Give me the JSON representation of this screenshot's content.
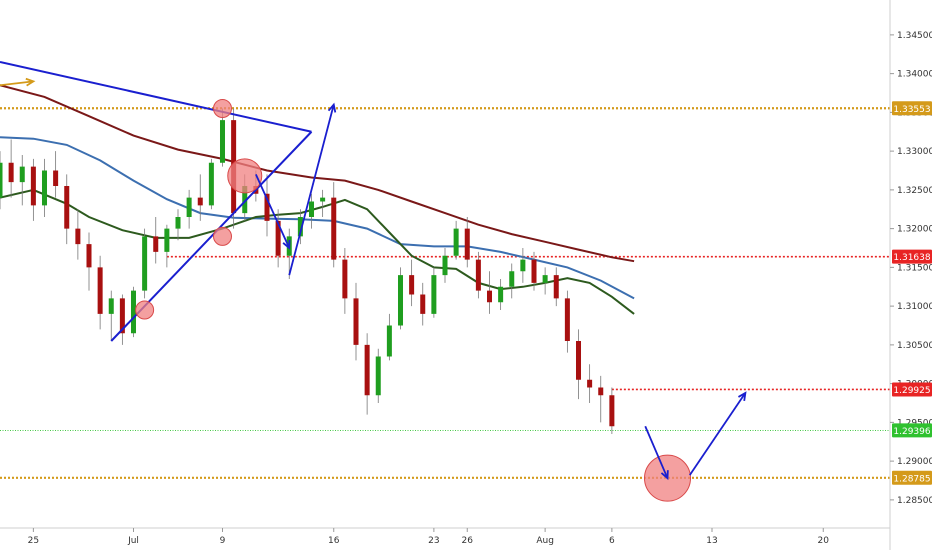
{
  "chart_data": {
    "type": "candlestick",
    "instrument": "",
    "x_tick_labels": [
      {
        "label": "25",
        "day": 0
      },
      {
        "label": "Jul",
        "day": 9
      },
      {
        "label": "9",
        "day": 17
      },
      {
        "label": "16",
        "day": 27
      },
      {
        "label": "23",
        "day": 36
      },
      {
        "label": "26",
        "day": 39
      },
      {
        "label": "Aug",
        "day": 46
      },
      {
        "label": "6",
        "day": 52
      },
      {
        "label": "13",
        "day": 61
      },
      {
        "label": "20",
        "day": 71
      }
    ],
    "x_range": [
      -3,
      77
    ],
    "y_range": [
      1.2815,
      1.3495
    ],
    "y_ticks": [
      "1.34500",
      "1.34000",
      "1.33500",
      "1.33000",
      "1.32500",
      "1.32000",
      "1.31500",
      "1.31000",
      "1.30500",
      "1.30000",
      "1.29500",
      "1.29000",
      "1.28500"
    ],
    "colors": {
      "up": "#1f9e1f",
      "down": "#a81010",
      "ma_fast": "#2d5a1e",
      "ma_mid": "#3c6fb0",
      "ma_slow": "#7a1818",
      "orange_level": "#d49a1a",
      "red_level": "#e82424",
      "green_level": "#2fc12f",
      "annotation_blue": "#1a1fcf",
      "circle_fill": "#f08080"
    },
    "horizontal_levels": [
      {
        "value": 1.33553,
        "label": "1.33553",
        "color": "#d49a1a",
        "style": "dotted-thick",
        "from_day": -3
      },
      {
        "value": 1.31638,
        "label": "1.31638",
        "color": "#e82424",
        "style": "dotted",
        "from_day": 12
      },
      {
        "value": 1.29925,
        "label": "1.29925",
        "color": "#e82424",
        "style": "dotted",
        "from_day": 52
      },
      {
        "value": 1.29396,
        "label": "1.29396",
        "color": "#2fc12f",
        "style": "dotted-thin",
        "from_day": -3
      },
      {
        "value": 1.28785,
        "label": "1.28785",
        "color": "#d49a1a",
        "style": "dotted-thick",
        "from_day": -3
      }
    ],
    "moving_averages": [
      {
        "color": "#7a1818",
        "points": [
          [
            -3,
            1.3385
          ],
          [
            1,
            1.337
          ],
          [
            5,
            1.3345
          ],
          [
            9,
            1.332
          ],
          [
            13,
            1.3302
          ],
          [
            17,
            1.329
          ],
          [
            21,
            1.3275
          ],
          [
            25,
            1.3266
          ],
          [
            28,
            1.3262
          ],
          [
            31,
            1.325
          ],
          [
            34,
            1.3235
          ],
          [
            37,
            1.322
          ],
          [
            40,
            1.3205
          ],
          [
            43,
            1.3193
          ],
          [
            46,
            1.3183
          ],
          [
            49,
            1.3173
          ],
          [
            52,
            1.3163
          ],
          [
            54,
            1.3158
          ]
        ]
      },
      {
        "color": "#3c6fb0",
        "points": [
          [
            -3,
            1.3318
          ],
          [
            0,
            1.3316
          ],
          [
            3,
            1.3308
          ],
          [
            6,
            1.3288
          ],
          [
            9,
            1.3262
          ],
          [
            12,
            1.3238
          ],
          [
            15,
            1.322
          ],
          [
            18,
            1.3214
          ],
          [
            21,
            1.3213
          ],
          [
            24,
            1.3212
          ],
          [
            27,
            1.321
          ],
          [
            30,
            1.32
          ],
          [
            33,
            1.318
          ],
          [
            36,
            1.3177
          ],
          [
            39,
            1.3177
          ],
          [
            42,
            1.317
          ],
          [
            45,
            1.316
          ],
          [
            48,
            1.315
          ],
          [
            51,
            1.3133
          ],
          [
            54,
            1.311
          ]
        ]
      },
      {
        "color": "#2d5a1e",
        "points": [
          [
            -3,
            1.324
          ],
          [
            0,
            1.325
          ],
          [
            3,
            1.3232
          ],
          [
            5,
            1.3215
          ],
          [
            8,
            1.3198
          ],
          [
            11,
            1.3188
          ],
          [
            14,
            1.3188
          ],
          [
            17,
            1.32
          ],
          [
            20,
            1.3215
          ],
          [
            22,
            1.3218
          ],
          [
            24,
            1.322
          ],
          [
            26,
            1.3228
          ],
          [
            28,
            1.3237
          ],
          [
            30,
            1.3225
          ],
          [
            32,
            1.3195
          ],
          [
            34,
            1.3165
          ],
          [
            36,
            1.315
          ],
          [
            38,
            1.3148
          ],
          [
            40,
            1.313
          ],
          [
            42,
            1.3122
          ],
          [
            44,
            1.3125
          ],
          [
            46,
            1.313
          ],
          [
            48,
            1.3136
          ],
          [
            50,
            1.313
          ],
          [
            52,
            1.3112
          ],
          [
            54,
            1.309
          ]
        ]
      }
    ],
    "candles": [
      [
        -3,
        1.324,
        1.33,
        1.3225,
        1.3285
      ],
      [
        -2,
        1.3285,
        1.3315,
        1.324,
        1.326
      ],
      [
        -1,
        1.326,
        1.3295,
        1.323,
        1.328
      ],
      [
        0,
        1.328,
        1.329,
        1.321,
        1.323
      ],
      [
        1,
        1.323,
        1.329,
        1.3215,
        1.3275
      ],
      [
        2,
        1.3275,
        1.33,
        1.324,
        1.3255
      ],
      [
        3,
        1.3255,
        1.327,
        1.318,
        1.32
      ],
      [
        4,
        1.32,
        1.3225,
        1.316,
        1.318
      ],
      [
        5,
        1.318,
        1.3195,
        1.312,
        1.315
      ],
      [
        6,
        1.315,
        1.3165,
        1.307,
        1.309
      ],
      [
        7,
        1.309,
        1.312,
        1.3055,
        1.311
      ],
      [
        8,
        1.311,
        1.3115,
        1.305,
        1.3065
      ],
      [
        9,
        1.3065,
        1.3125,
        1.306,
        1.312
      ],
      [
        10,
        1.312,
        1.32,
        1.311,
        1.319
      ],
      [
        11,
        1.319,
        1.3215,
        1.3155,
        1.317
      ],
      [
        12,
        1.317,
        1.3205,
        1.315,
        1.32
      ],
      [
        13,
        1.32,
        1.3225,
        1.3185,
        1.3215
      ],
      [
        14,
        1.3215,
        1.325,
        1.32,
        1.324
      ],
      [
        15,
        1.324,
        1.327,
        1.321,
        1.323
      ],
      [
        16,
        1.323,
        1.329,
        1.3225,
        1.3285
      ],
      [
        17,
        1.3285,
        1.3355,
        1.328,
        1.334
      ],
      [
        18,
        1.334,
        1.3355,
        1.32,
        1.322
      ],
      [
        19,
        1.322,
        1.327,
        1.321,
        1.3255
      ],
      [
        20,
        1.3255,
        1.3275,
        1.3235,
        1.3245
      ],
      [
        21,
        1.3245,
        1.327,
        1.319,
        1.321
      ],
      [
        22,
        1.321,
        1.3225,
        1.315,
        1.3165
      ],
      [
        23,
        1.3165,
        1.32,
        1.3135,
        1.319
      ],
      [
        24,
        1.319,
        1.3225,
        1.318,
        1.3215
      ],
      [
        25,
        1.3215,
        1.3245,
        1.32,
        1.3235
      ],
      [
        26,
        1.3235,
        1.325,
        1.3215,
        1.324
      ],
      [
        27,
        1.324,
        1.326,
        1.315,
        1.316
      ],
      [
        28,
        1.316,
        1.3175,
        1.309,
        1.311
      ],
      [
        29,
        1.311,
        1.313,
        1.303,
        1.305
      ],
      [
        30,
        1.305,
        1.3065,
        1.296,
        1.2985
      ],
      [
        31,
        1.2985,
        1.3045,
        1.2975,
        1.3035
      ],
      [
        32,
        1.3035,
        1.309,
        1.303,
        1.3075
      ],
      [
        33,
        1.3075,
        1.315,
        1.307,
        1.314
      ],
      [
        34,
        1.314,
        1.316,
        1.31,
        1.3115
      ],
      [
        35,
        1.3115,
        1.313,
        1.3075,
        1.309
      ],
      [
        36,
        1.309,
        1.315,
        1.3085,
        1.314
      ],
      [
        37,
        1.314,
        1.3175,
        1.313,
        1.3165
      ],
      [
        38,
        1.3165,
        1.321,
        1.316,
        1.32
      ],
      [
        39,
        1.32,
        1.3215,
        1.315,
        1.316
      ],
      [
        40,
        1.316,
        1.317,
        1.311,
        1.312
      ],
      [
        41,
        1.312,
        1.3145,
        1.309,
        1.3105
      ],
      [
        42,
        1.3105,
        1.3135,
        1.3095,
        1.3125
      ],
      [
        43,
        1.3125,
        1.3155,
        1.311,
        1.3145
      ],
      [
        44,
        1.3145,
        1.3175,
        1.313,
        1.316
      ],
      [
        45,
        1.316,
        1.317,
        1.312,
        1.313
      ],
      [
        46,
        1.313,
        1.315,
        1.3115,
        1.314
      ],
      [
        47,
        1.314,
        1.315,
        1.31,
        1.311
      ],
      [
        48,
        1.311,
        1.312,
        1.304,
        1.3055
      ],
      [
        49,
        1.3055,
        1.307,
        1.298,
        1.3005
      ],
      [
        50,
        1.3005,
        1.3025,
        1.2975,
        1.2995
      ],
      [
        51,
        1.2995,
        1.301,
        1.295,
        1.2985
      ],
      [
        52,
        1.2985,
        1.2995,
        1.2935,
        1.2945
      ]
    ],
    "trend_lines": [
      {
        "color": "#1a1fcf",
        "from": [
          -3,
          1.3415
        ],
        "to": [
          25,
          1.3325
        ]
      },
      {
        "color": "#1a1fcf",
        "from": [
          7,
          1.3055
        ],
        "to": [
          25,
          1.3325
        ]
      }
    ],
    "arrows": [
      {
        "color": "#d49a1a",
        "from": [
          -3,
          1.3385
        ],
        "to": [
          0,
          1.339
        ]
      },
      {
        "color": "#1a1fcf",
        "from": [
          20,
          1.327
        ],
        "to": [
          23,
          1.3175
        ]
      },
      {
        "color": "#1a1fcf",
        "from": [
          23,
          1.314
        ],
        "to": [
          27,
          1.336
        ]
      },
      {
        "color": "#1a1fcf",
        "from": [
          55,
          1.2945
        ],
        "to": [
          57,
          1.2878
        ]
      },
      {
        "color": "#1a1fcf",
        "from": [
          59,
          1.2882
        ],
        "to": [
          64,
          1.2988
        ]
      }
    ],
    "circles": [
      {
        "center": [
          17,
          1.3355
        ],
        "radius": 9
      },
      {
        "center": [
          19,
          1.3268
        ],
        "radius": 17
      },
      {
        "center": [
          17,
          1.319
        ],
        "radius": 9
      },
      {
        "center": [
          10,
          1.3095
        ],
        "radius": 9
      },
      {
        "center": [
          57,
          1.2878
        ],
        "radius": 23
      }
    ]
  }
}
